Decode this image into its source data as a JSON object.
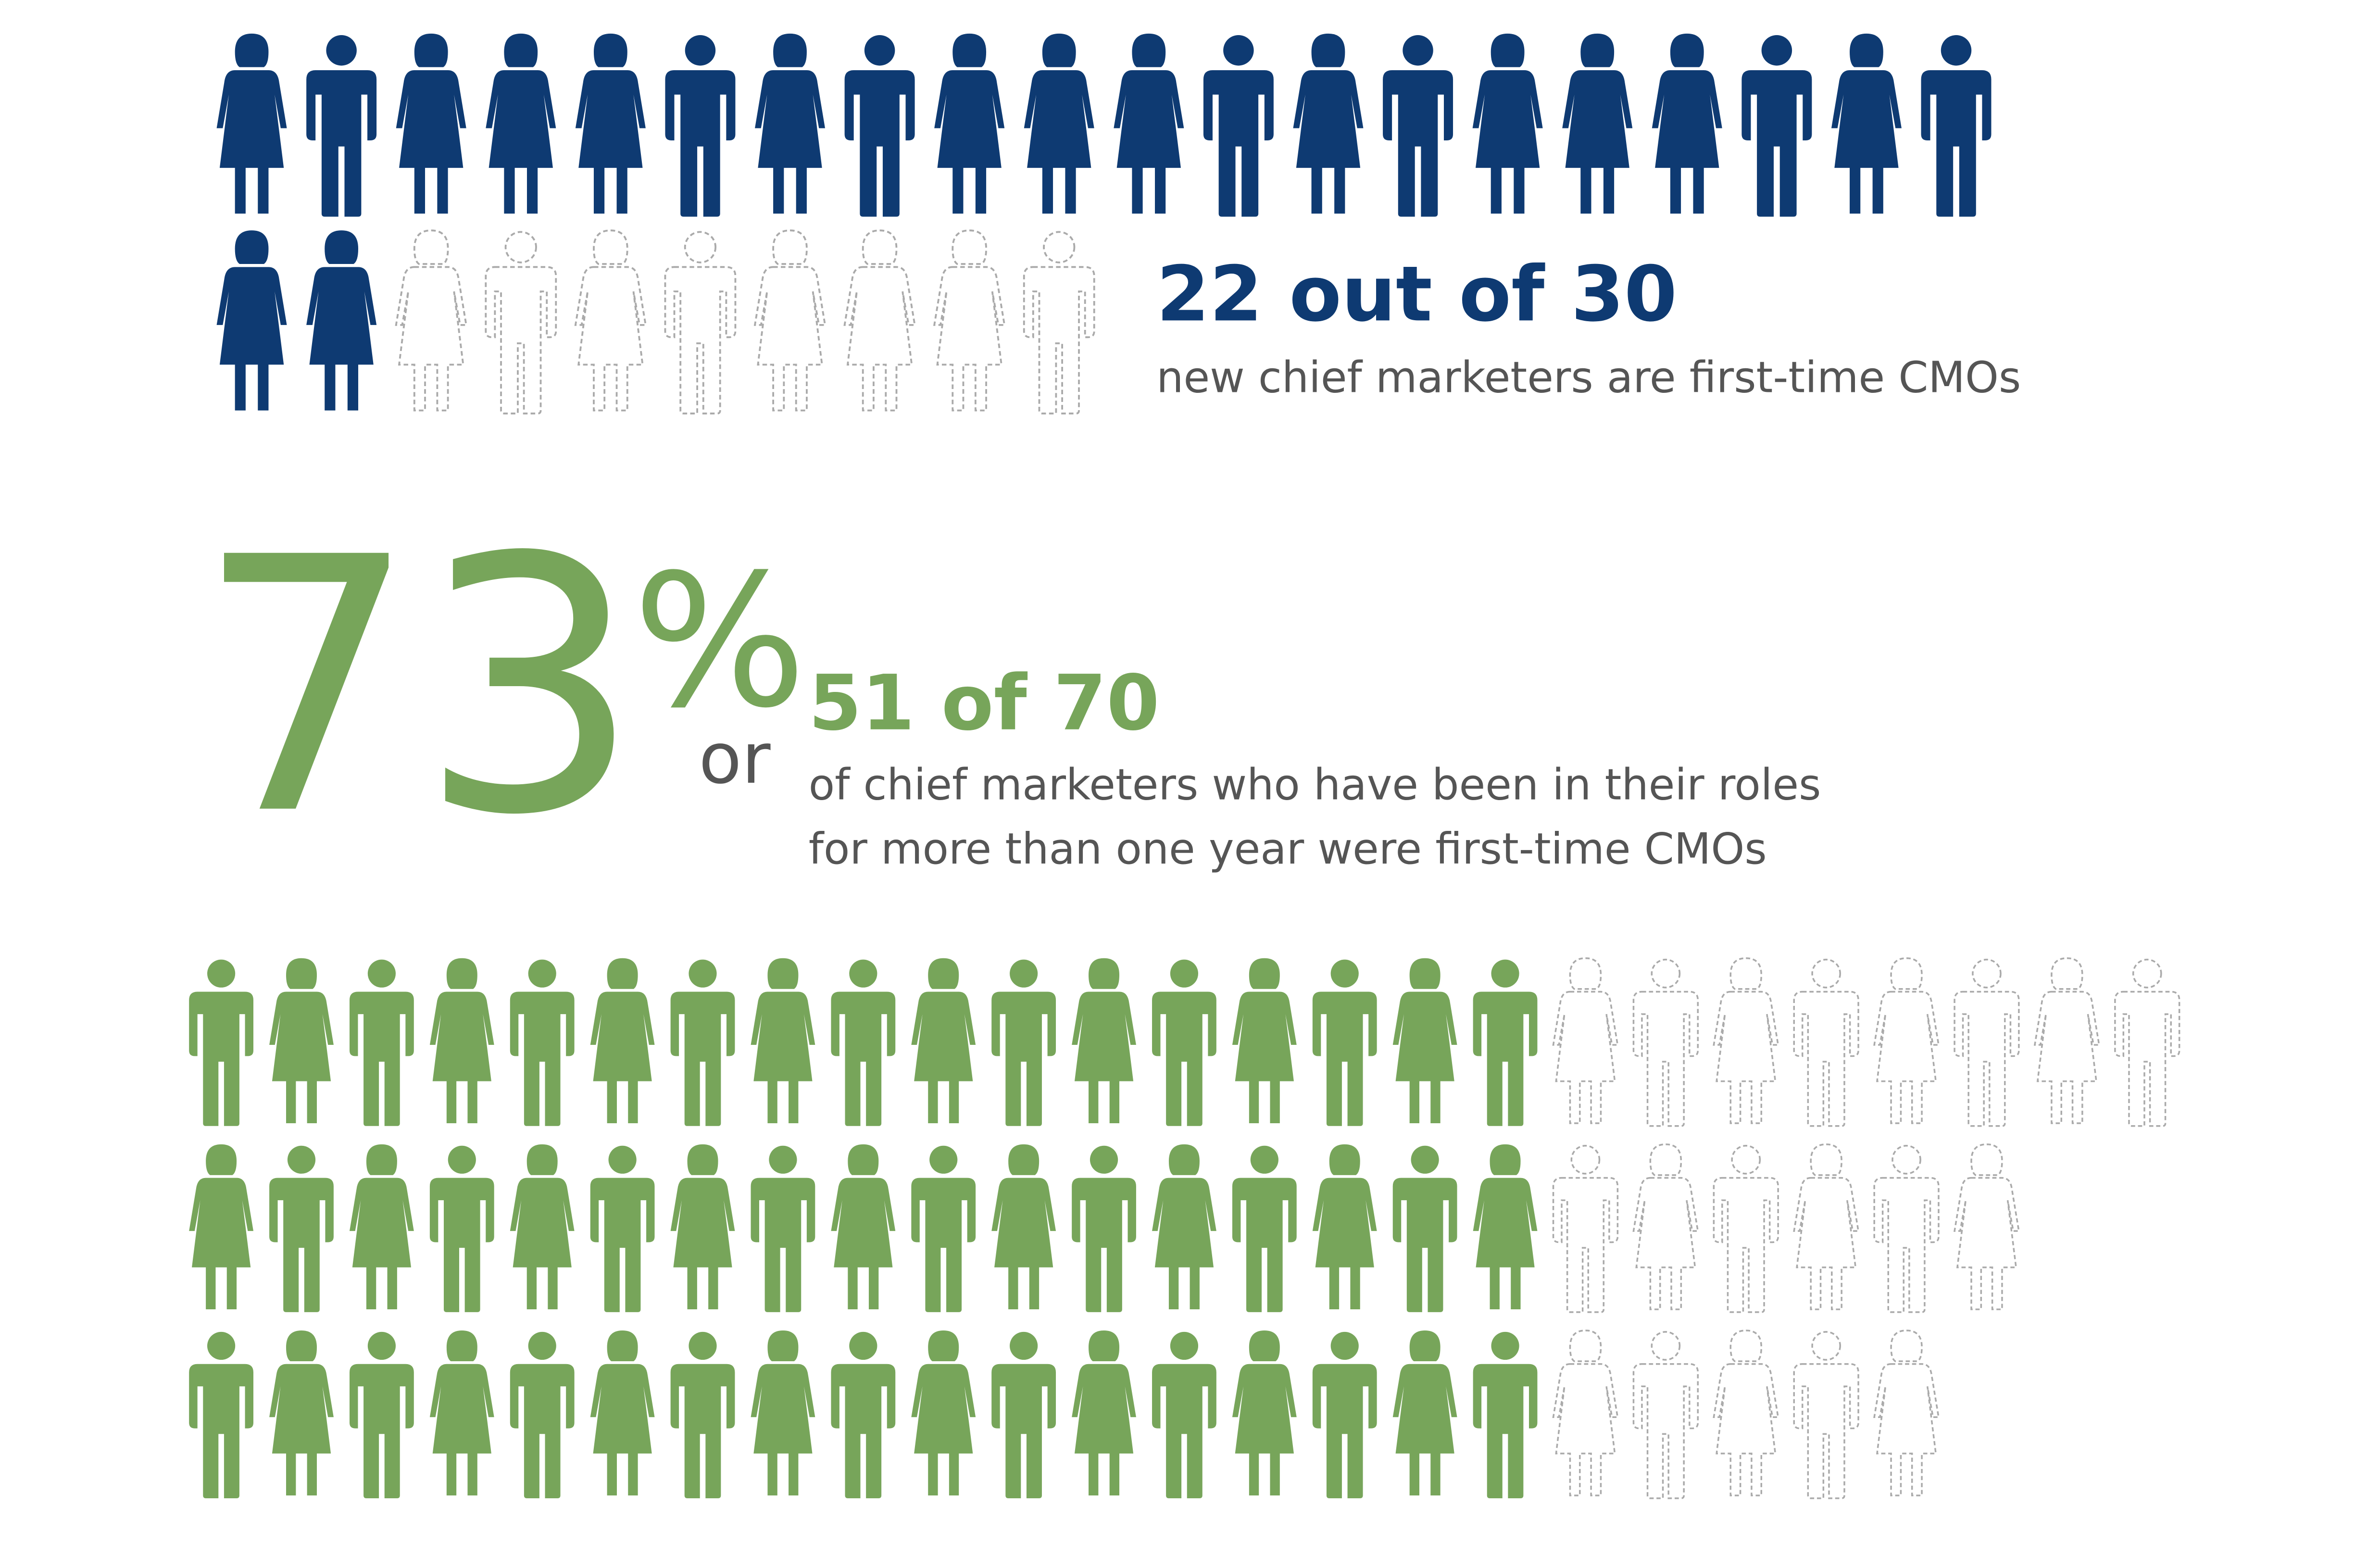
{
  "first_time_new": {
    "headline": "22 out of 30",
    "caption": "new chief marketers are first-time CMOs",
    "filled": 22,
    "total": 30,
    "color": "#0e3a72"
  },
  "first_time_tenured": {
    "percent": "73%",
    "connector": "or",
    "headline": "51 of 70",
    "caption_lines": [
      "of chief marketers who have been in their roles",
      "for more than one year were first-time CMOs"
    ],
    "filled": 51,
    "total": 70,
    "color": "#77a55a"
  }
}
